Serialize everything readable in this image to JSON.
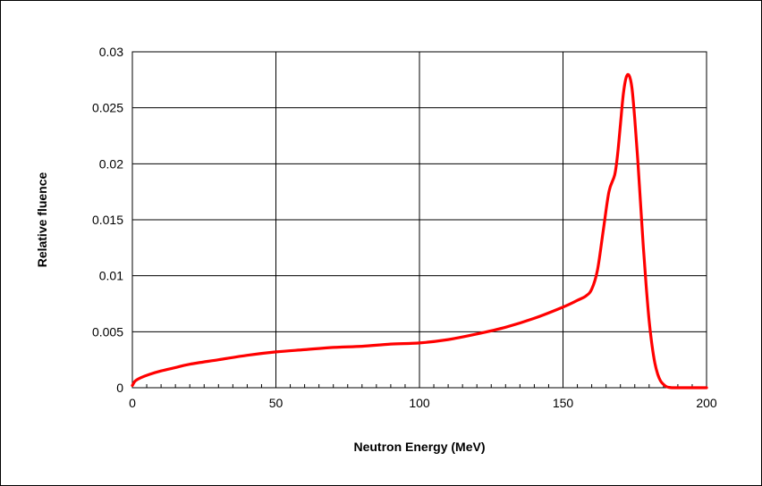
{
  "chart_data": {
    "type": "line",
    "title": "",
    "xlabel": "Neutron Energy (MeV)",
    "ylabel": "Relative fluence",
    "xlim": [
      0,
      200
    ],
    "ylim": [
      0,
      0.03
    ],
    "x_ticks": [
      "0",
      "50",
      "100",
      "150",
      "200"
    ],
    "y_ticks": [
      "0",
      "0.005",
      "0.01",
      "0.015",
      "0.02",
      "0.025",
      "0.03"
    ],
    "grid": true,
    "legend": "none",
    "series": [
      {
        "color": "#ff0000",
        "x": [
          0,
          1,
          3,
          6,
          10,
          15,
          20,
          30,
          40,
          50,
          60,
          70,
          80,
          90,
          100,
          110,
          120,
          130,
          140,
          150,
          155,
          158,
          160,
          162,
          164,
          166,
          168,
          169,
          170,
          171,
          172,
          173,
          174,
          175,
          176,
          177,
          178,
          179,
          180,
          181,
          182,
          183,
          184,
          185,
          186,
          187,
          188,
          190,
          200
        ],
        "y": [
          0.0002,
          0.0006,
          0.0009,
          0.0012,
          0.0015,
          0.0018,
          0.0021,
          0.0025,
          0.0029,
          0.0032,
          0.0034,
          0.0036,
          0.0037,
          0.0039,
          0.004,
          0.0043,
          0.0048,
          0.0054,
          0.0062,
          0.0072,
          0.0078,
          0.0082,
          0.0088,
          0.0105,
          0.014,
          0.0175,
          0.019,
          0.0208,
          0.0235,
          0.0262,
          0.0277,
          0.0279,
          0.0268,
          0.024,
          0.0205,
          0.0165,
          0.0125,
          0.009,
          0.006,
          0.0038,
          0.0022,
          0.0012,
          0.0006,
          0.0003,
          0.0001,
          3e-05,
          0,
          0,
          0
        ]
      }
    ]
  }
}
